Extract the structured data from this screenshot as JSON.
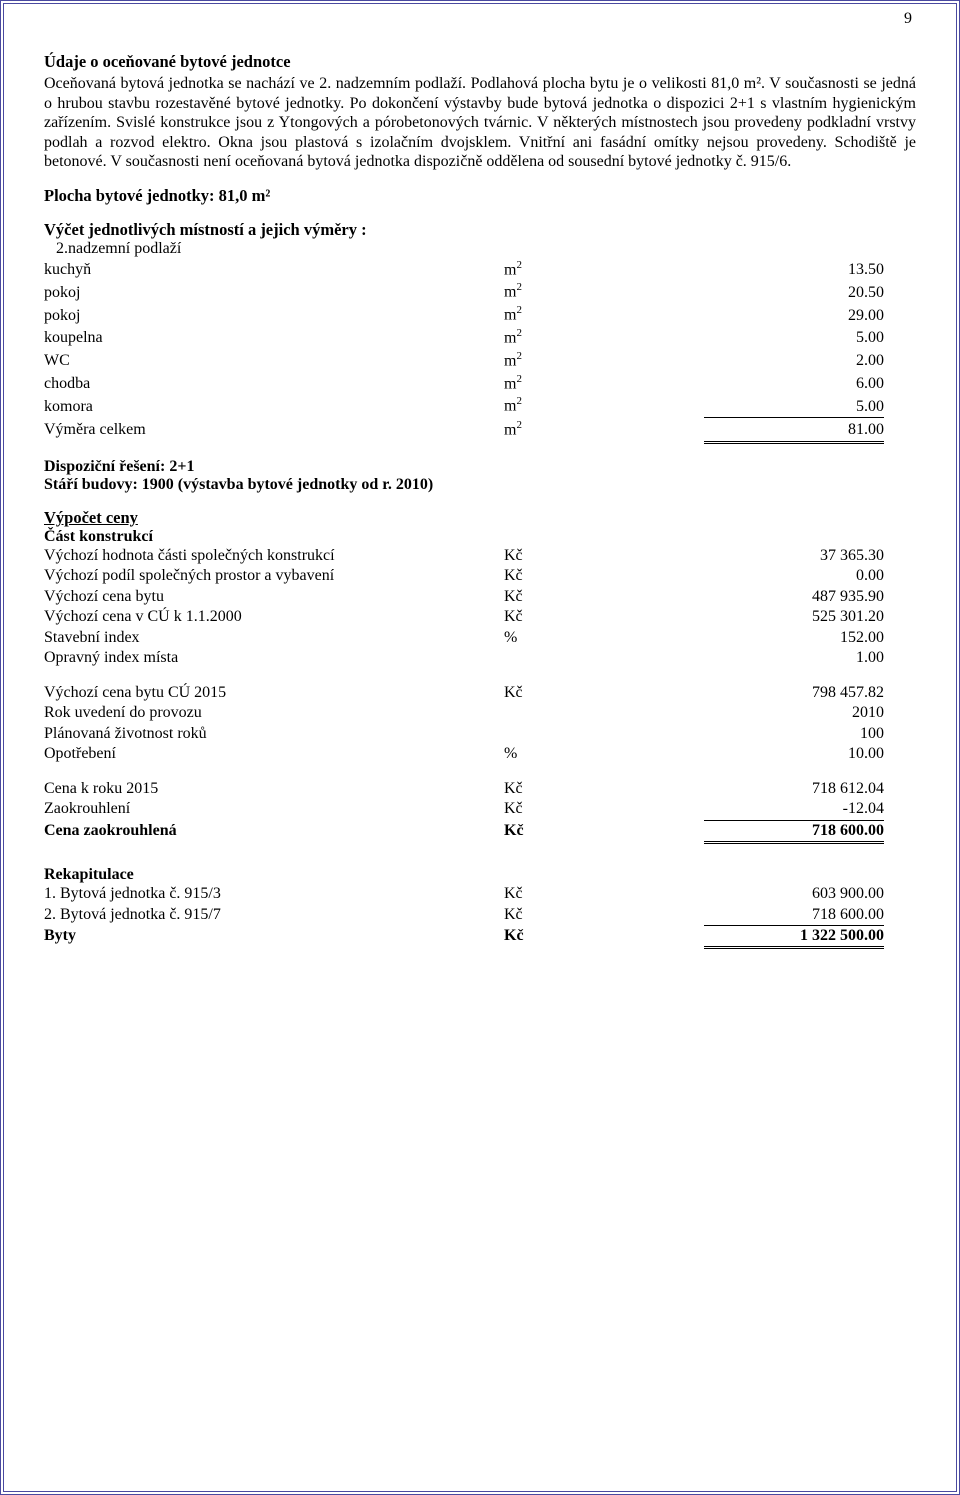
{
  "page_number": "9",
  "colors": {
    "border": "#4a4aa0",
    "text": "#000000",
    "bg": "#ffffff"
  },
  "section1": {
    "title": "Údaje o oceňované bytové jednotce",
    "paragraph": "Oceňovaná bytová jednotka se nachází ve 2. nadzemním podlaží. Podlahová plocha bytu je o velikosti 81,0 m². V současnosti se jedná o hrubou stavbu rozestavěné bytové jednotky. Po dokončení výstavby bude bytová jednotka o dispozici 2+1 s vlastním hygienickým zařízením. Svislé konstrukce jsou z Ytongových a pórobetonových tvárnic. V některých místnostech jsou provedeny podkladní vrstvy podlah a rozvod elektro. Okna jsou plastová s izolačním dvojsklem. Vnitřní ani fasádní omítky nejsou provedeny. Schodiště je betonové. V současnosti není oceňovaná bytová jednotka dispozičně oddělena od sousední bytové jednotky č. 915/6."
  },
  "area_line": "Plocha bytové jednotky:  81,0 m²",
  "rooms": {
    "heading": "Výčet jednotlivých místností a jejich výměry :",
    "subheading": "2.nadzemní podlaží",
    "unit_base": "m",
    "unit_sup": "2",
    "items": [
      {
        "label": "kuchyň",
        "value": "13.50"
      },
      {
        "label": "pokoj",
        "value": "20.50"
      },
      {
        "label": "pokoj",
        "value": "29.00"
      },
      {
        "label": "koupelna",
        "value": "5.00"
      },
      {
        "label": "WC",
        "value": "2.00"
      },
      {
        "label": "chodba",
        "value": "6.00"
      },
      {
        "label": "komora",
        "value": "5.00"
      }
    ],
    "total": {
      "label": "Výměra celkem",
      "value": "81.00"
    }
  },
  "dispo": {
    "line1": "Dispoziční řešení: 2+1",
    "line2": "Stáří budovy: 1900 (výstavba bytové jednotky od r. 2010)"
  },
  "calc": {
    "heading": "Výpočet ceny",
    "subheading": "Část konstrukcí",
    "group1": [
      {
        "label": "Výchozí hodnota části společných konstrukcí",
        "unit": "Kč",
        "value": "37 365.30"
      },
      {
        "label": "Výchozí podíl společných prostor a vybavení",
        "unit": "Kč",
        "value": "0.00"
      },
      {
        "label": "Výchozí cena bytu",
        "unit": "Kč",
        "value": "487 935.90"
      },
      {
        "label": "Výchozí cena v CÚ k 1.1.2000",
        "unit": "Kč",
        "value": "525 301.20"
      },
      {
        "label": "Stavební index",
        "unit": "%",
        "value": "152.00"
      },
      {
        "label": "Opravný index místa",
        "unit": "",
        "value": "1.00"
      }
    ],
    "group2": [
      {
        "label": "Výchozí cena bytu CÚ 2015",
        "unit": "Kč",
        "value": "798 457.82"
      },
      {
        "label": "Rok uvedení do provozu",
        "unit": "",
        "value": "2010"
      },
      {
        "label": "Plánovaná životnost roků",
        "unit": "",
        "value": "100"
      },
      {
        "label": "Opotřebení",
        "unit": "%",
        "value": "10.00"
      }
    ],
    "group3": [
      {
        "label": "Cena k roku 2015",
        "unit": "Kč",
        "value": "718 612.04"
      },
      {
        "label": "Zaokrouhlení",
        "unit": "Kč",
        "value": "-12.04"
      }
    ],
    "total": {
      "label": "Cena zaokrouhlená",
      "unit": "Kč",
      "value": "718 600.00"
    }
  },
  "recap": {
    "heading": "Rekapitulace",
    "items": [
      {
        "label": "1. Bytová jednotka č. 915/3",
        "unit": "Kč",
        "value": "603 900.00"
      },
      {
        "label": "2. Bytová jednotka č. 915/7",
        "unit": "Kč",
        "value": "718 600.00"
      }
    ],
    "total": {
      "label": "Byty",
      "unit": "Kč",
      "value": "1 322 500.00"
    }
  }
}
